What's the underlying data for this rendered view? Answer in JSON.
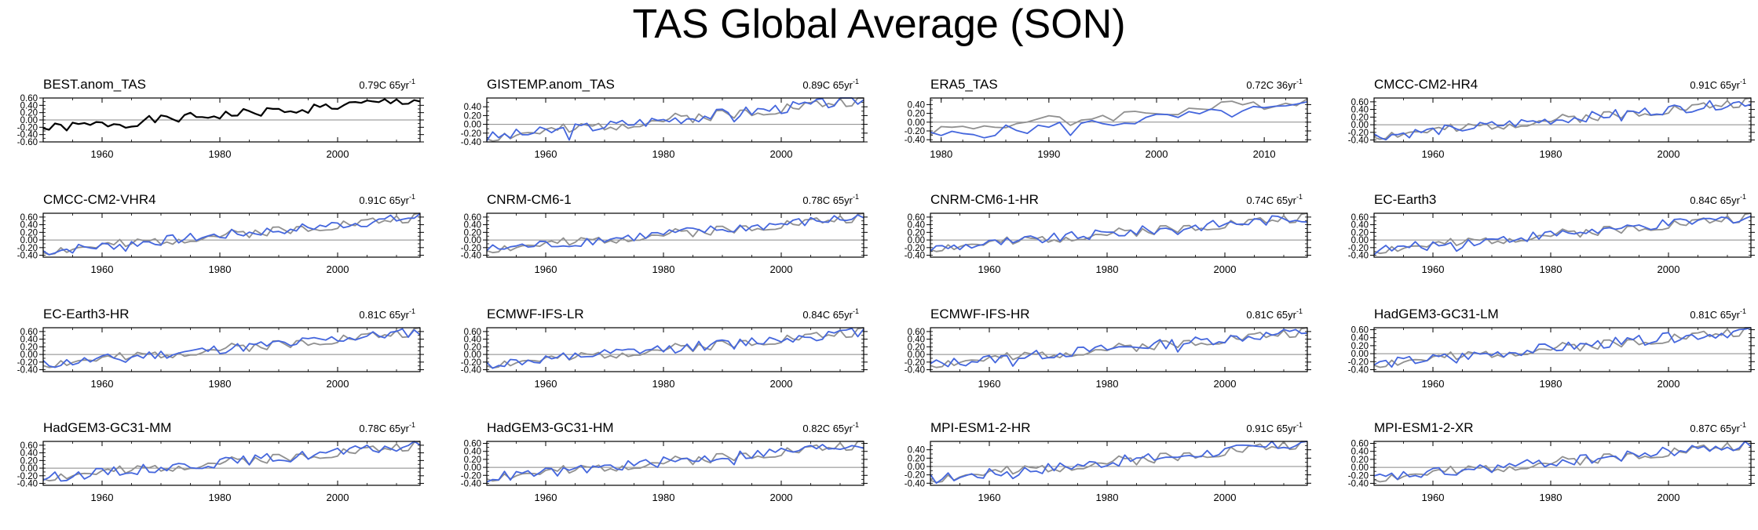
{
  "figure_title": "TAS Global Average (SON)",
  "colors": {
    "model": "#4466dd",
    "reference": "#909090",
    "observation": "#000000",
    "zero_line": "#888888"
  },
  "chart_data": [
    {
      "type": "line",
      "title": "BEST.anom_TAS",
      "trend": "0.79C 65yr",
      "trend_suffix": "-1",
      "xlim": [
        1950,
        2014
      ],
      "ylim": [
        -0.6,
        0.6
      ],
      "yticks": [
        "0.60",
        "0.40",
        "0.20",
        "0.00",
        "-0.20",
        "-0.40",
        "-0.60"
      ],
      "xticks": [
        1960,
        1980,
        2000
      ],
      "trend_start": -0.24,
      "trend_end": 0.55,
      "series": [
        {
          "role": "observation",
          "seed": 1
        }
      ]
    },
    {
      "type": "line",
      "title": "GISTEMP.anom_TAS",
      "trend": "0.89C 65yr",
      "trend_suffix": "-1",
      "xlim": [
        1950,
        2014
      ],
      "ylim": [
        -0.4,
        0.6
      ],
      "yticks": [
        "0.40",
        "0.20",
        "0.00",
        "-0.20",
        "-0.40"
      ],
      "xticks": [
        1960,
        1980,
        2000
      ],
      "trend_start": -0.3,
      "trend_end": 0.56,
      "series": [
        {
          "role": "reference",
          "seed": 2
        },
        {
          "role": "model",
          "seed": 3
        }
      ]
    },
    {
      "type": "line",
      "title": "ERA5_TAS",
      "trend": "0.72C 36yr",
      "trend_suffix": "-1",
      "xlim": [
        1979,
        2014
      ],
      "ylim": [
        -0.45,
        0.55
      ],
      "yticks": [
        "0.40",
        "0.20",
        "0.00",
        "-0.20",
        "-0.40"
      ],
      "xticks": [
        1980,
        1990,
        2000,
        2010
      ],
      "trend_start": -0.18,
      "trend_end": 0.5,
      "model_offset": -0.15,
      "series": [
        {
          "role": "reference",
          "seed": 4
        },
        {
          "role": "model",
          "seed": 5
        }
      ]
    },
    {
      "type": "line",
      "title": "CMCC-CM2-HR4",
      "trend": "0.91C 65yr",
      "trend_suffix": "-1",
      "xlim": [
        1950,
        2014
      ],
      "ylim": [
        -0.45,
        0.7
      ],
      "yticks": [
        "0.60",
        "0.40",
        "0.20",
        "0.00",
        "-0.20",
        "-0.40"
      ],
      "xticks": [
        1960,
        1980,
        2000
      ],
      "trend_start": -0.3,
      "trend_end": 0.6,
      "series": [
        {
          "role": "reference",
          "seed": 2
        },
        {
          "role": "model",
          "seed": 6
        }
      ]
    },
    {
      "type": "line",
      "title": "CMCC-CM2-VHR4",
      "trend": "0.91C 65yr",
      "trend_suffix": "-1",
      "xlim": [
        1950,
        2014
      ],
      "ylim": [
        -0.45,
        0.7
      ],
      "yticks": [
        "0.60",
        "0.40",
        "0.20",
        "0.00",
        "-0.20",
        "-0.40"
      ],
      "xticks": [
        1960,
        1980,
        2000
      ],
      "trend_start": -0.3,
      "trend_end": 0.6,
      "series": [
        {
          "role": "reference",
          "seed": 2
        },
        {
          "role": "model",
          "seed": 7
        }
      ]
    },
    {
      "type": "line",
      "title": "CNRM-CM6-1",
      "trend": "0.78C 65yr",
      "trend_suffix": "-1",
      "xlim": [
        1950,
        2014
      ],
      "ylim": [
        -0.45,
        0.7
      ],
      "yticks": [
        "0.60",
        "0.40",
        "0.20",
        "0.00",
        "-0.20",
        "-0.40"
      ],
      "xticks": [
        1960,
        1980,
        2000
      ],
      "trend_start": -0.25,
      "trend_end": 0.6,
      "series": [
        {
          "role": "reference",
          "seed": 2
        },
        {
          "role": "model",
          "seed": 8
        }
      ]
    },
    {
      "type": "line",
      "title": "CNRM-CM6-1-HR",
      "trend": "0.74C 65yr",
      "trend_suffix": "-1",
      "xlim": [
        1950,
        2014
      ],
      "ylim": [
        -0.45,
        0.7
      ],
      "yticks": [
        "0.60",
        "0.40",
        "0.20",
        "0.00",
        "-0.20",
        "-0.40"
      ],
      "xticks": [
        1960,
        1980,
        2000
      ],
      "trend_start": -0.22,
      "trend_end": 0.6,
      "series": [
        {
          "role": "reference",
          "seed": 2
        },
        {
          "role": "model",
          "seed": 9
        }
      ]
    },
    {
      "type": "line",
      "title": "EC-Earth3",
      "trend": "0.84C 65yr",
      "trend_suffix": "-1",
      "xlim": [
        1950,
        2014
      ],
      "ylim": [
        -0.45,
        0.7
      ],
      "yticks": [
        "0.60",
        "0.40",
        "0.20",
        "0.00",
        "-0.20",
        "-0.40"
      ],
      "xticks": [
        1960,
        1980,
        2000
      ],
      "trend_start": -0.27,
      "trend_end": 0.6,
      "series": [
        {
          "role": "reference",
          "seed": 2
        },
        {
          "role": "model",
          "seed": 10
        }
      ]
    },
    {
      "type": "line",
      "title": "EC-Earth3-HR",
      "trend": "0.81C 65yr",
      "trend_suffix": "-1",
      "xlim": [
        1950,
        2014
      ],
      "ylim": [
        -0.45,
        0.7
      ],
      "yticks": [
        "0.60",
        "0.40",
        "0.20",
        "0.00",
        "-0.20",
        "-0.40"
      ],
      "xticks": [
        1960,
        1980,
        2000
      ],
      "trend_start": -0.26,
      "trend_end": 0.6,
      "series": [
        {
          "role": "reference",
          "seed": 2
        },
        {
          "role": "model",
          "seed": 11
        }
      ]
    },
    {
      "type": "line",
      "title": "ECMWF-IFS-LR",
      "trend": "0.84C 65yr",
      "trend_suffix": "-1",
      "xlim": [
        1950,
        2014
      ],
      "ylim": [
        -0.45,
        0.7
      ],
      "yticks": [
        "0.60",
        "0.40",
        "0.20",
        "0.00",
        "-0.20",
        "-0.40"
      ],
      "xticks": [
        1960,
        1980,
        2000
      ],
      "trend_start": -0.27,
      "trend_end": 0.6,
      "series": [
        {
          "role": "reference",
          "seed": 2
        },
        {
          "role": "model",
          "seed": 12
        }
      ]
    },
    {
      "type": "line",
      "title": "ECMWF-IFS-HR",
      "trend": "0.81C 65yr",
      "trend_suffix": "-1",
      "xlim": [
        1950,
        2014
      ],
      "ylim": [
        -0.45,
        0.7
      ],
      "yticks": [
        "0.60",
        "0.40",
        "0.20",
        "0.00",
        "-0.20",
        "-0.40"
      ],
      "xticks": [
        1960,
        1980,
        2000
      ],
      "trend_start": -0.26,
      "trend_end": 0.6,
      "series": [
        {
          "role": "reference",
          "seed": 2
        },
        {
          "role": "model",
          "seed": 13
        }
      ]
    },
    {
      "type": "line",
      "title": "HadGEM3-GC31-LM",
      "trend": "0.81C 65yr",
      "trend_suffix": "-1",
      "xlim": [
        1950,
        2014
      ],
      "ylim": [
        -0.45,
        0.65
      ],
      "yticks": [
        "0.60",
        "0.40",
        "0.20",
        "0.00",
        "-0.20",
        "-0.40"
      ],
      "xticks": [
        1960,
        1980,
        2000
      ],
      "trend_start": -0.26,
      "trend_end": 0.58,
      "series": [
        {
          "role": "reference",
          "seed": 2
        },
        {
          "role": "model",
          "seed": 14
        }
      ]
    },
    {
      "type": "line",
      "title": "HadGEM3-GC31-MM",
      "trend": "0.78C 65yr",
      "trend_suffix": "-1",
      "xlim": [
        1950,
        2014
      ],
      "ylim": [
        -0.45,
        0.7
      ],
      "yticks": [
        "0.60",
        "0.40",
        "0.20",
        "0.00",
        "-0.20",
        "-0.40"
      ],
      "xticks": [
        1960,
        1980,
        2000
      ],
      "trend_start": -0.25,
      "trend_end": 0.6,
      "series": [
        {
          "role": "reference",
          "seed": 2
        },
        {
          "role": "model",
          "seed": 15
        }
      ]
    },
    {
      "type": "line",
      "title": "HadGEM3-GC31-HM",
      "trend": "0.82C 65yr",
      "trend_suffix": "-1",
      "xlim": [
        1950,
        2014
      ],
      "ylim": [
        -0.45,
        0.65
      ],
      "yticks": [
        "0.60",
        "0.40",
        "0.20",
        "0.00",
        "-0.20",
        "-0.40"
      ],
      "xticks": [
        1960,
        1980,
        2000
      ],
      "trend_start": -0.26,
      "trend_end": 0.58,
      "series": [
        {
          "role": "reference",
          "seed": 2
        },
        {
          "role": "model",
          "seed": 16
        }
      ]
    },
    {
      "type": "line",
      "title": "MPI-ESM1-2-HR",
      "trend": "0.91C 65yr",
      "trend_suffix": "-1",
      "xlim": [
        1950,
        2014
      ],
      "ylim": [
        -0.45,
        0.6
      ],
      "yticks": [
        "0.40",
        "0.20",
        "0.00",
        "-0.20",
        "-0.40"
      ],
      "xticks": [
        1960,
        1980,
        2000
      ],
      "trend_start": -0.3,
      "trend_end": 0.56,
      "series": [
        {
          "role": "reference",
          "seed": 2
        },
        {
          "role": "model",
          "seed": 17
        }
      ]
    },
    {
      "type": "line",
      "title": "MPI-ESM1-2-XR",
      "trend": "0.87C 65yr",
      "trend_suffix": "-1",
      "xlim": [
        1950,
        2014
      ],
      "ylim": [
        -0.45,
        0.65
      ],
      "yticks": [
        "0.60",
        "0.40",
        "0.20",
        "0.00",
        "-0.20",
        "-0.40"
      ],
      "xticks": [
        1960,
        1980,
        2000
      ],
      "trend_start": -0.28,
      "trend_end": 0.58,
      "series": [
        {
          "role": "reference",
          "seed": 2
        },
        {
          "role": "model",
          "seed": 18
        }
      ]
    }
  ]
}
